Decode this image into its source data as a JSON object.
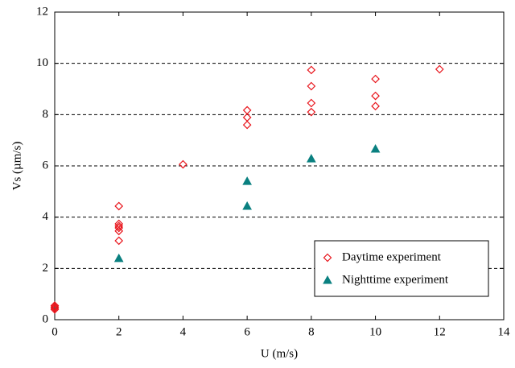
{
  "chart_data": {
    "type": "scatter",
    "x_label": "U (m/s)",
    "y_label": "Vs (µm/s)",
    "xlim": [
      0,
      14
    ],
    "xticks": [
      0,
      2,
      4,
      6,
      8,
      10,
      12,
      14
    ],
    "ylim": [
      0,
      12
    ],
    "yticks": [
      0,
      2,
      4,
      6,
      8,
      10,
      12
    ],
    "grid": true,
    "legend": "lower right",
    "series": [
      {
        "name": "Daytime experiment",
        "color": "#e8141b",
        "marker": "diamond",
        "x": [
          0,
          0,
          0,
          0,
          2,
          2,
          2,
          2,
          2,
          2,
          4,
          6,
          6,
          6,
          8,
          8,
          8,
          8,
          10,
          10,
          10,
          12
        ],
        "values": [
          0.4,
          0.45,
          0.5,
          0.55,
          4.43,
          3.74,
          3.65,
          3.58,
          3.46,
          3.08,
          6.06,
          8.17,
          7.89,
          7.6,
          9.74,
          9.11,
          8.45,
          8.1,
          9.39,
          8.73,
          8.33,
          9.77
        ]
      },
      {
        "name": "Nighttime experiment",
        "color": "#0a8080",
        "marker": "triangle",
        "x": [
          2,
          6,
          6,
          8,
          10
        ],
        "values": [
          2.39,
          5.4,
          4.43,
          6.28,
          6.66
        ]
      }
    ]
  }
}
